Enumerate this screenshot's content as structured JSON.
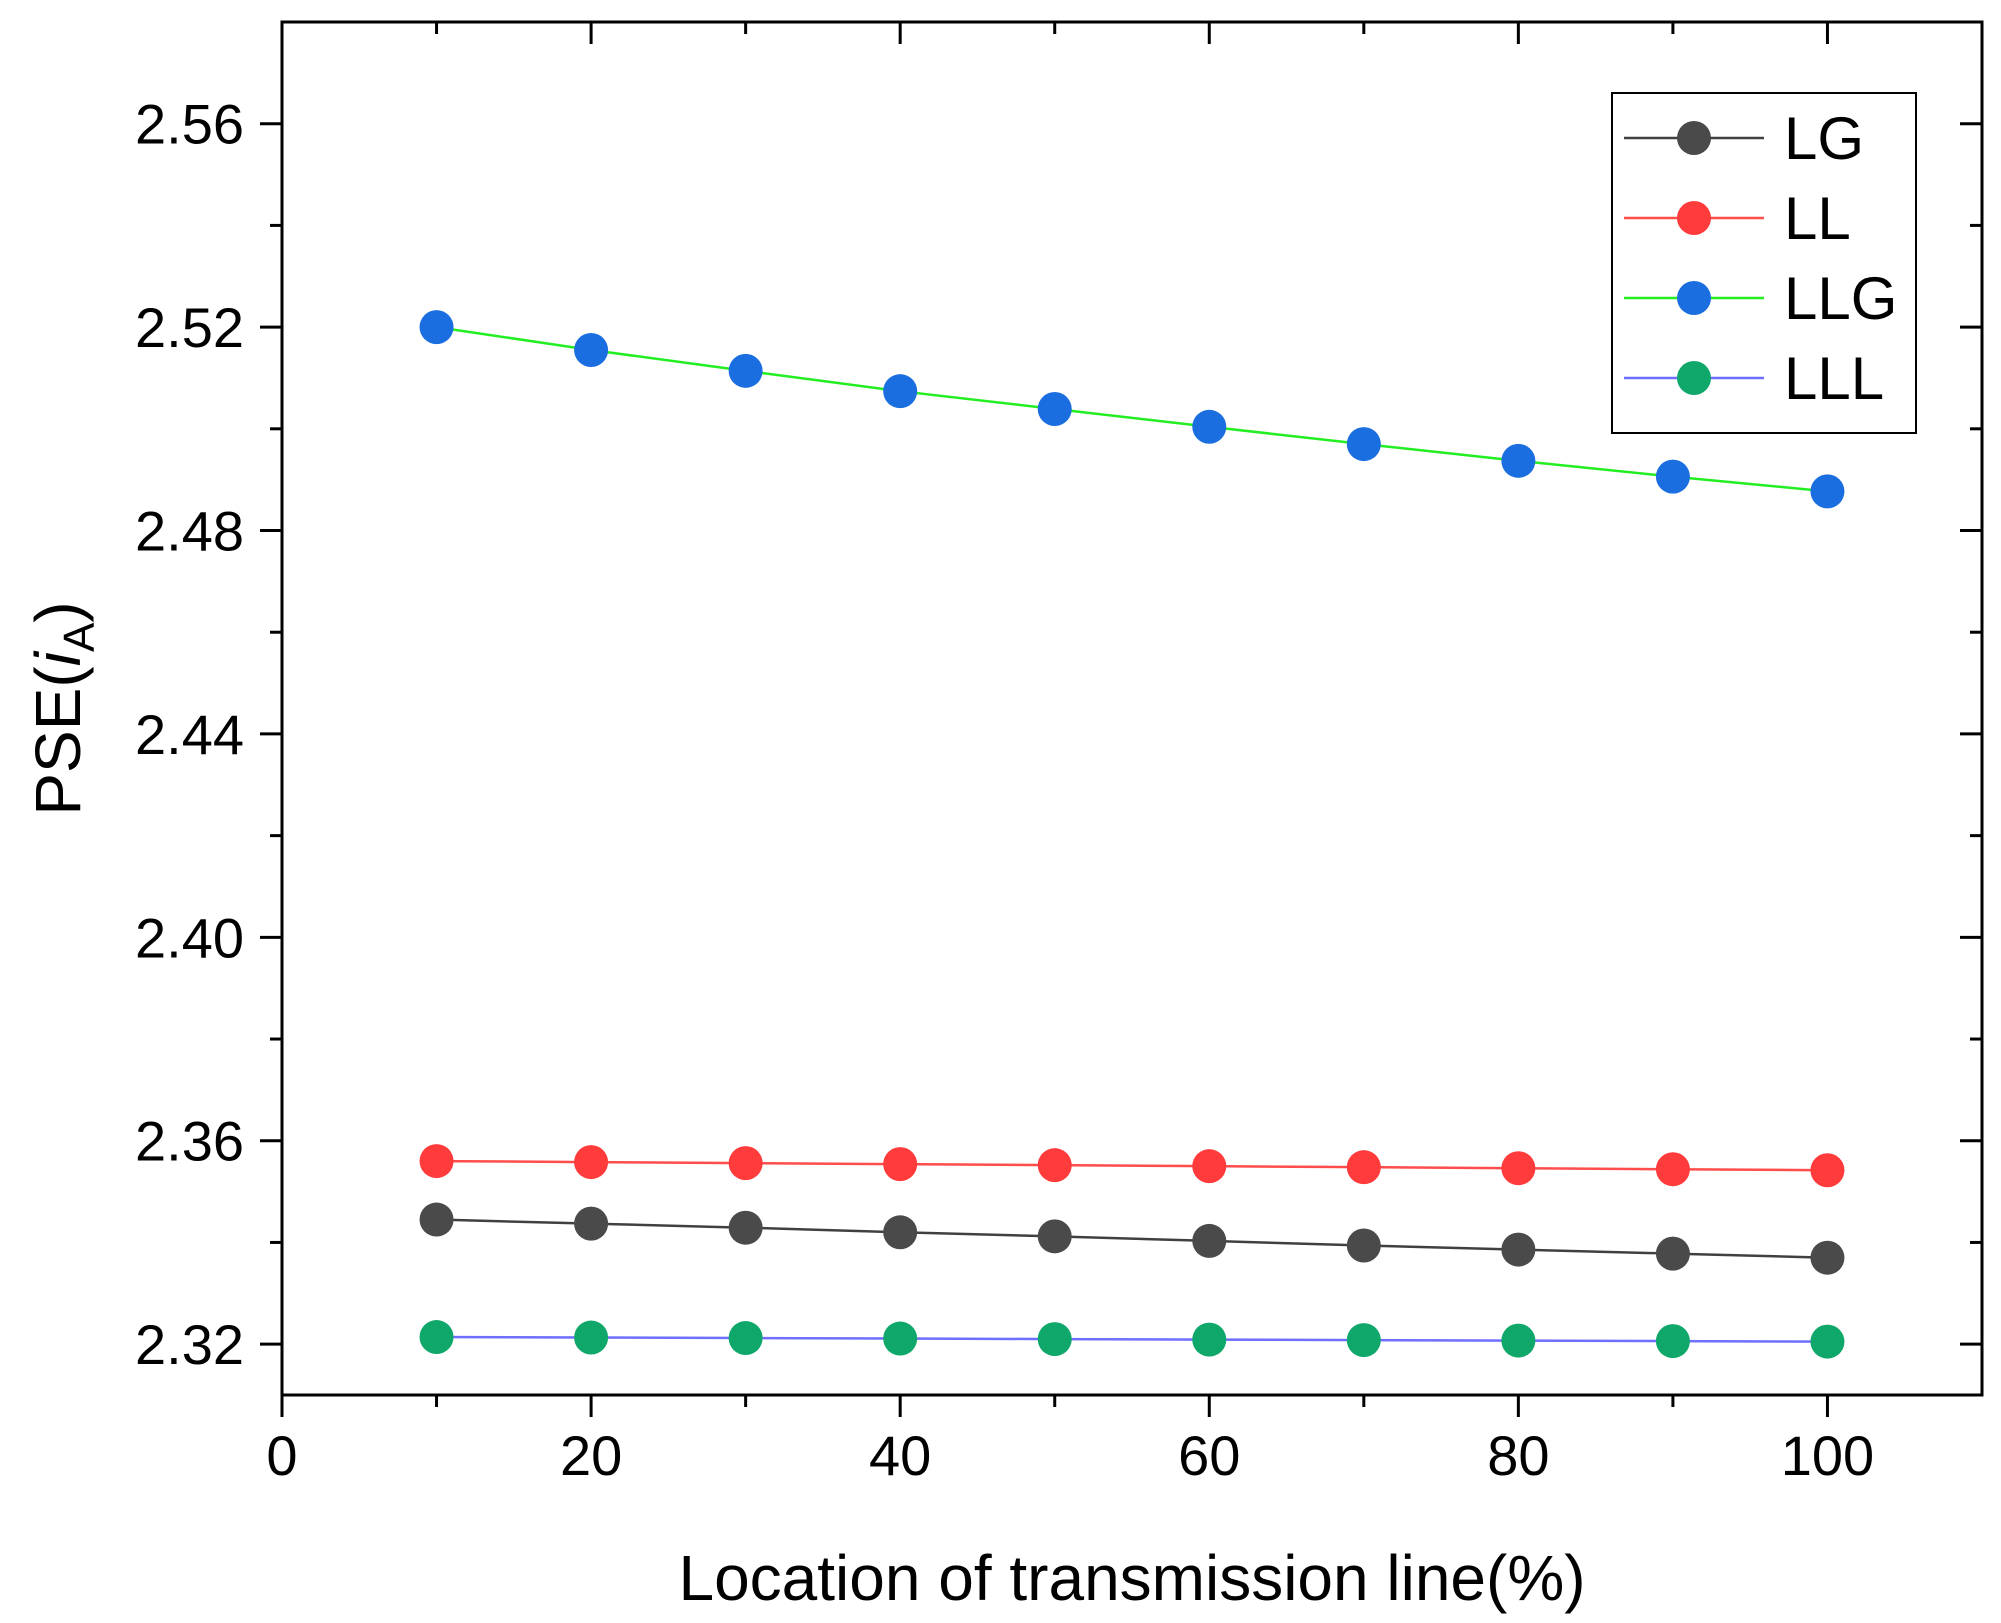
{
  "chart_data": {
    "type": "line",
    "title": "",
    "xlabel": "Location of transmission line(%)",
    "ylabel_main": "PSE(",
    "ylabel_italic": "i",
    "ylabel_sub": "A",
    "ylabel_close": ")",
    "xlim": [
      0,
      110
    ],
    "ylim": [
      2.31,
      2.58
    ],
    "xticks": [
      0,
      20,
      40,
      60,
      80,
      100
    ],
    "xtick_labels": [
      "0",
      "20",
      "40",
      "60",
      "80",
      "100"
    ],
    "yticks": [
      2.32,
      2.36,
      2.4,
      2.44,
      2.48,
      2.52,
      2.56
    ],
    "ytick_labels": [
      "2.32",
      "2.36",
      "2.40",
      "2.44",
      "2.48",
      "2.52",
      "2.56"
    ],
    "grid": false,
    "legend_position": "top-right",
    "x": [
      10,
      20,
      30,
      40,
      50,
      60,
      70,
      80,
      90,
      100
    ],
    "series": [
      {
        "name": "LG",
        "line_color": "#404040",
        "marker_color": "#4a4a4a",
        "values": [
          2.3445,
          2.3437,
          2.3429,
          2.342,
          2.3412,
          2.3403,
          2.3394,
          2.3386,
          2.3378,
          2.337
        ]
      },
      {
        "name": "LL",
        "line_color": "#ff4d4d",
        "marker_color": "#ff3b3b",
        "values": [
          2.356,
          2.3558,
          2.3556,
          2.3554,
          2.3552,
          2.355,
          2.3548,
          2.3546,
          2.3544,
          2.3542
        ]
      },
      {
        "name": "LLG",
        "line_color": "#22ee22",
        "marker_color": "#1a6ee0",
        "values": [
          2.52,
          2.5155,
          2.5114,
          2.5074,
          2.5039,
          2.5004,
          2.497,
          2.4937,
          2.4906,
          2.4877
        ]
      },
      {
        "name": "LLL",
        "line_color": "#6e6eff",
        "marker_color": "#10a86a",
        "values": [
          2.3214,
          2.3213,
          2.3212,
          2.3211,
          2.321,
          2.3209,
          2.3208,
          2.3207,
          2.3206,
          2.3205
        ]
      }
    ]
  }
}
